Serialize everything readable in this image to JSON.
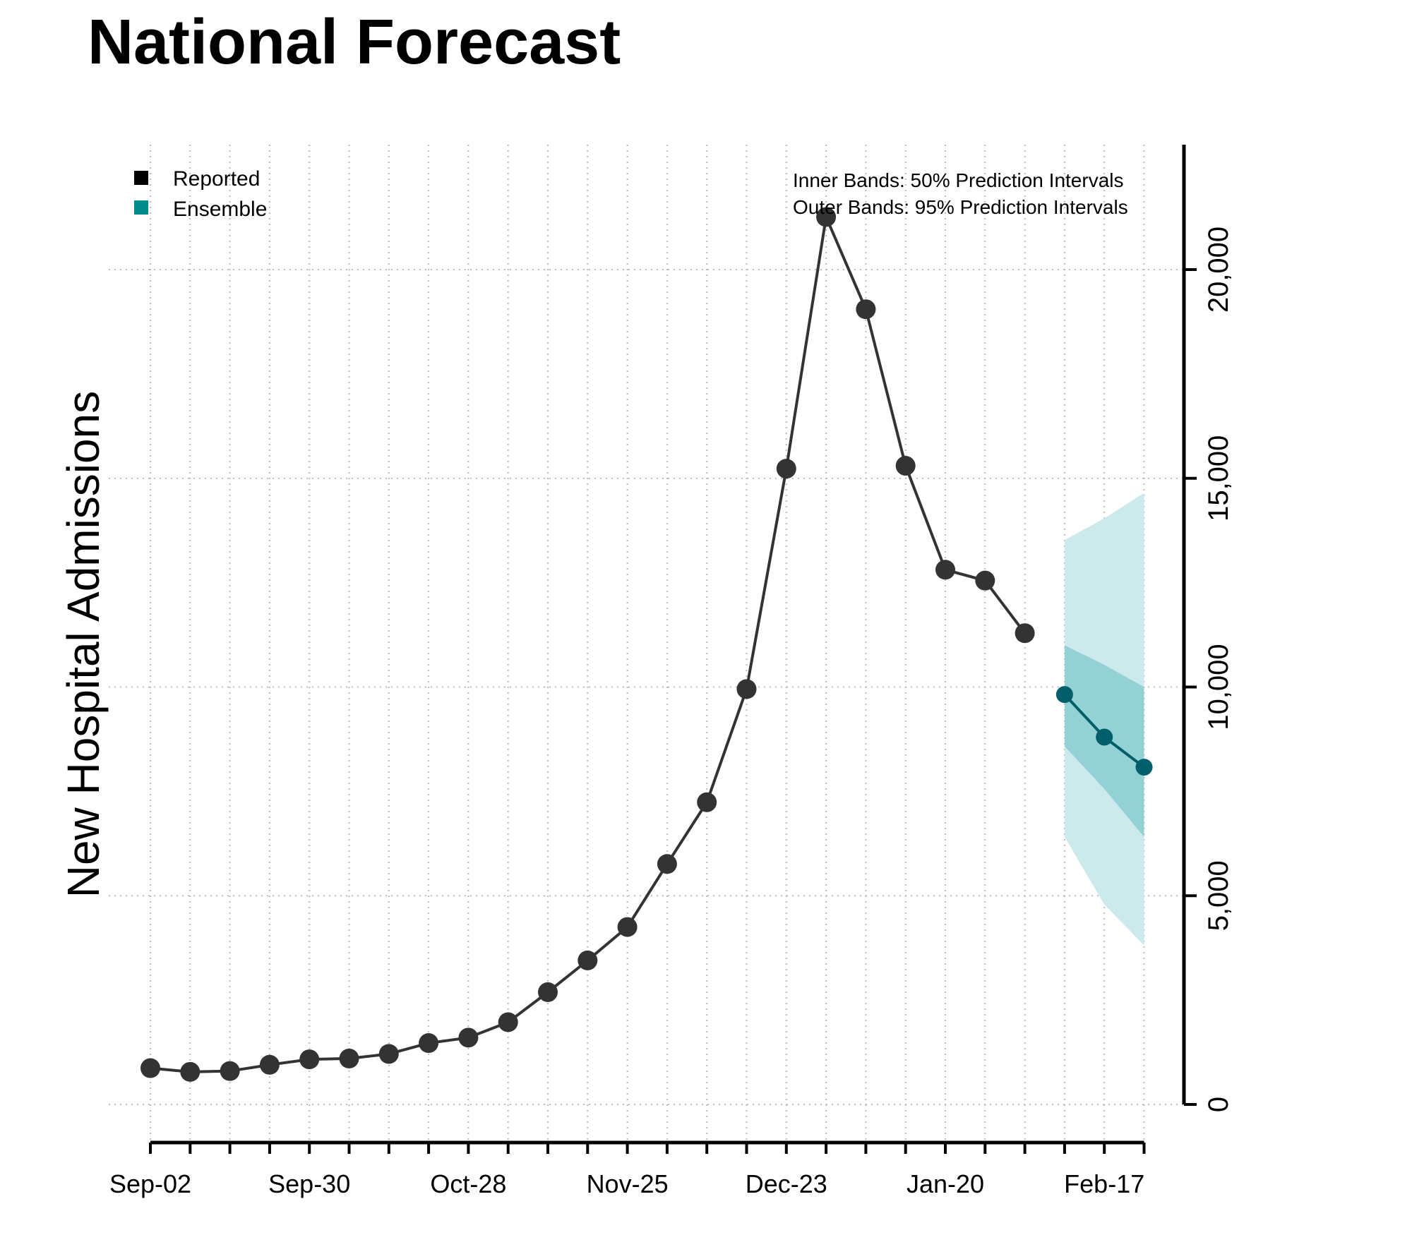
{
  "chart_data": {
    "type": "line",
    "title": "National Forecast",
    "xlabel": "",
    "ylabel": "New Hospital Admissions",
    "ylim": [
      0,
      23000
    ],
    "y_ticks": [
      0,
      5000,
      10000,
      15000,
      20000
    ],
    "y_tick_labels": [
      "0",
      "5,000",
      "10,000",
      "15,000",
      "20,000"
    ],
    "x_tick_labels": [
      "Sep-02",
      "Sep-30",
      "Oct-28",
      "Nov-25",
      "Dec-23",
      "Jan-20",
      "Feb-17"
    ],
    "grid": true,
    "legend_placement": "top-left",
    "legend": [
      {
        "name": "Reported",
        "color": "#000000"
      },
      {
        "name": "Ensemble",
        "color": "#008b8b"
      }
    ],
    "annotations": [
      "Inner Bands: 50% Prediction Intervals",
      "Outer Bands: 95% Prediction Intervals"
    ],
    "series": [
      {
        "name": "Reported",
        "color": "#333333",
        "x": [
          "Sep-02",
          "Sep-09",
          "Sep-16",
          "Sep-23",
          "Sep-30",
          "Oct-07",
          "Oct-14",
          "Oct-21",
          "Oct-28",
          "Nov-04",
          "Nov-11",
          "Nov-18",
          "Nov-25",
          "Dec-02",
          "Dec-09",
          "Dec-16",
          "Dec-23",
          "Dec-30",
          "Jan-06",
          "Jan-13",
          "Jan-20",
          "Jan-27",
          "Feb-03"
        ],
        "values": [
          870,
          780,
          800,
          950,
          1080,
          1100,
          1210,
          1470,
          1600,
          1970,
          2690,
          3450,
          4250,
          5760,
          7240,
          9950,
          15230,
          21260,
          19050,
          15300,
          12810,
          12550,
          11290
        ]
      },
      {
        "name": "Ensemble",
        "color": "#005f6b",
        "x": [
          "Feb-10",
          "Feb-17",
          "Feb-24"
        ],
        "values": [
          9820,
          8800,
          8080
        ],
        "pi50_lower": [
          8580,
          7560,
          6410
        ],
        "pi50_upper": [
          11000,
          10530,
          10000
        ],
        "pi95_lower": [
          6410,
          4790,
          3810
        ],
        "pi95_upper": [
          13520,
          14040,
          14650
        ]
      }
    ]
  }
}
